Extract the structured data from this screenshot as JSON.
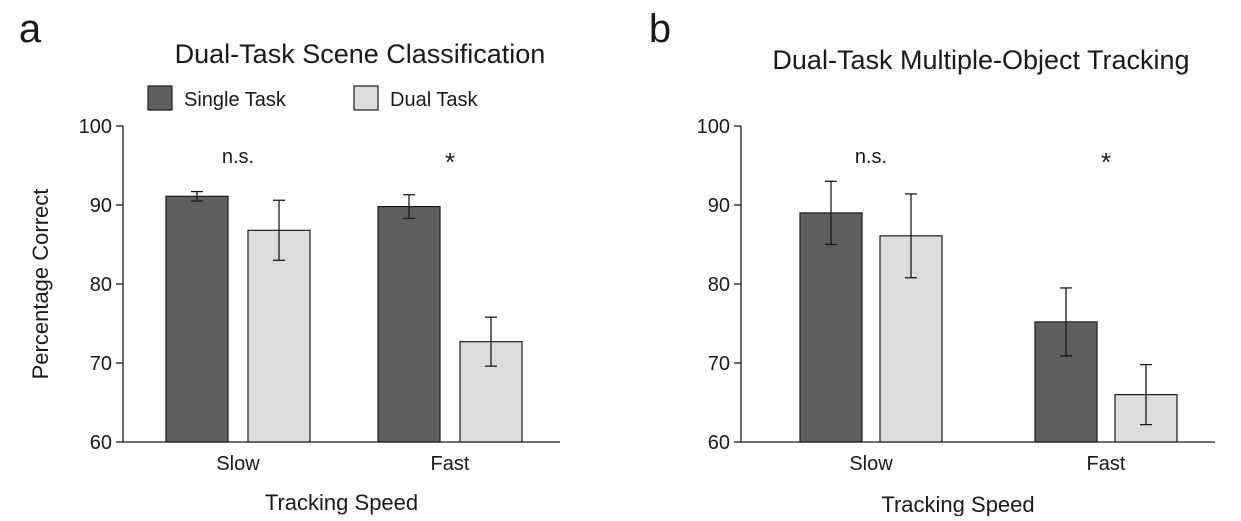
{
  "colors": {
    "single": "#5f5f5f",
    "dual": "#dcdcdc",
    "stroke": "#1a1a1a"
  },
  "chart_data": [
    {
      "type": "bar",
      "panel_label": "a",
      "title": "Dual-Task Scene Classification",
      "xlabel": "Tracking Speed",
      "ylabel": "Percentage Correct",
      "ylim": [
        60,
        100
      ],
      "yticks": [
        60,
        70,
        80,
        90,
        100
      ],
      "categories": [
        "Slow",
        "Fast"
      ],
      "series": [
        {
          "name": "Single Task",
          "values": [
            91.1,
            89.8
          ],
          "errors": [
            0.6,
            1.5
          ]
        },
        {
          "name": "Dual Task",
          "values": [
            86.8,
            72.7
          ],
          "errors": [
            3.8,
            3.1
          ]
        }
      ],
      "annotations": [
        "n.s.",
        "*"
      ],
      "legend": "top-left",
      "grid": false
    },
    {
      "type": "bar",
      "panel_label": "b",
      "title": "Dual-Task Multiple-Object Tracking",
      "xlabel": "Tracking Speed",
      "ylabel": "",
      "ylim": [
        60,
        100
      ],
      "yticks": [
        60,
        70,
        80,
        90,
        100
      ],
      "categories": [
        "Slow",
        "Fast"
      ],
      "series": [
        {
          "name": "Single Task",
          "values": [
            89.0,
            75.2
          ],
          "errors": [
            4.0,
            4.3
          ]
        },
        {
          "name": "Dual Task",
          "values": [
            86.1,
            66.0
          ],
          "errors": [
            5.3,
            3.8
          ]
        }
      ],
      "annotations": [
        "n.s.",
        "*"
      ],
      "legend": "",
      "grid": false
    }
  ]
}
